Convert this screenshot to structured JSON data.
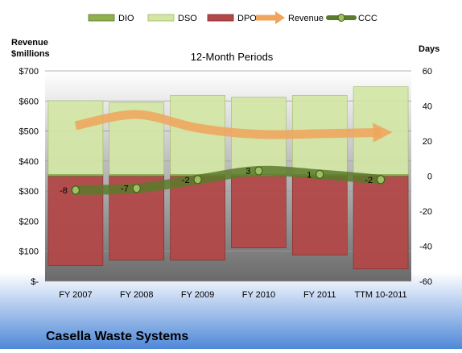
{
  "chart_data": {
    "type": "bar",
    "subtitle": "12-Month Periods",
    "company": "Casella Waste Systems",
    "left_axis_title": [
      "Revenue",
      "$millions"
    ],
    "right_axis_title": "Days",
    "categories": [
      "FY 2007",
      "FY 2008",
      "FY 2009",
      "FY 2010",
      "FY 2011",
      "TTM 10-2011"
    ],
    "left_axis": {
      "min": 0,
      "max": 700,
      "step": 100,
      "tick_labels": [
        "$-",
        "$100",
        "$200",
        "$300",
        "$400",
        "$500",
        "$600",
        "$700"
      ]
    },
    "right_axis": {
      "min": -60,
      "max": 60,
      "step": 20,
      "tick_labels": [
        "-60",
        "-40",
        "-20",
        "0",
        "20",
        "40",
        "60"
      ]
    },
    "legend": {
      "position": "top",
      "entries": [
        "DIO",
        "DSO",
        "DPO",
        "Revenue",
        "CCC"
      ]
    },
    "series": [
      {
        "name": "DIO",
        "axis": "right",
        "kind": "bar",
        "color": "#8fb04a",
        "values": [
          1,
          1,
          1,
          1,
          1,
          1
        ]
      },
      {
        "name": "DSO",
        "axis": "right",
        "kind": "bar",
        "color": "#d3e6a4",
        "values": [
          42,
          41,
          45,
          44,
          45,
          50
        ]
      },
      {
        "name": "DPO",
        "axis": "right",
        "kind": "bar",
        "color": "#b24848",
        "values": [
          -51,
          -48,
          -48,
          -41,
          -45,
          -53
        ]
      },
      {
        "name": "Revenue",
        "axis": "left",
        "kind": "line",
        "color": "#f0a45c",
        "values": [
          518,
          555,
          510,
          489,
          491,
          495
        ]
      },
      {
        "name": "CCC",
        "axis": "right",
        "kind": "line",
        "color": "#5c7a2c",
        "values": [
          -8,
          -7,
          -2,
          3,
          1,
          -2
        ]
      }
    ],
    "ccc_labels": [
      "-8",
      "-7",
      "-2",
      "3",
      "1",
      "-2"
    ]
  }
}
